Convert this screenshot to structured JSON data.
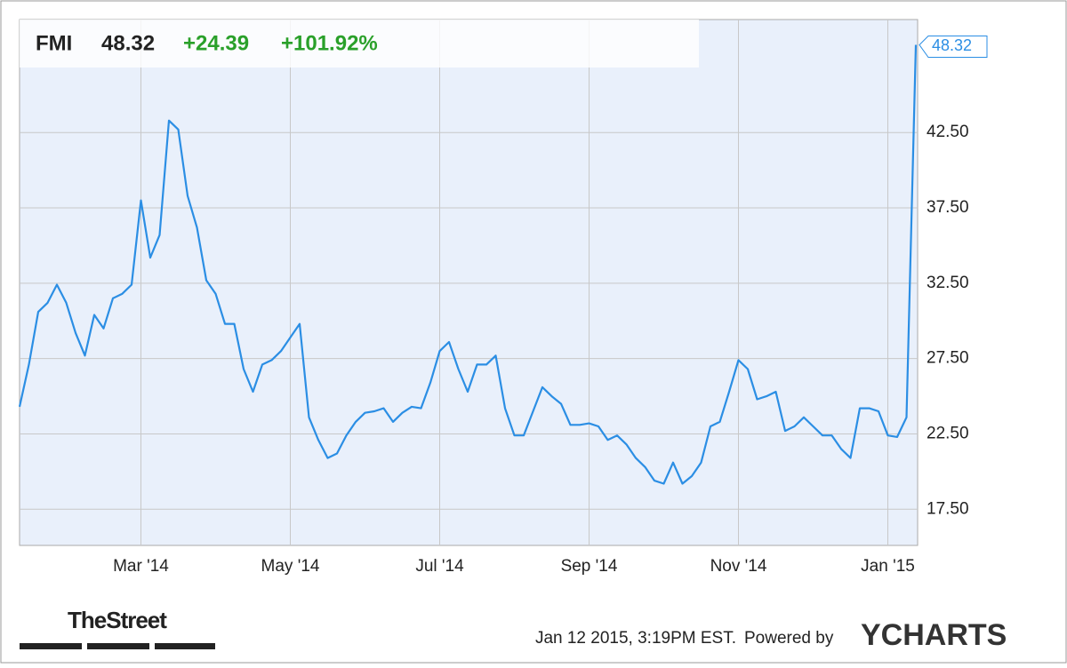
{
  "chart_data": {
    "type": "line",
    "ticker": "FMI",
    "price": "48.32",
    "change": "+24.39",
    "change_pct": "+101.92%",
    "last_label": "48.32",
    "categories": [
      null,
      null,
      null,
      null,
      null,
      null,
      null,
      null,
      null,
      null,
      null,
      null,
      null,
      "Mar '14",
      null,
      null,
      null,
      null,
      null,
      null,
      null,
      null,
      null,
      null,
      null,
      null,
      null,
      null,
      null,
      "May '14",
      null,
      null,
      null,
      null,
      null,
      null,
      null,
      null,
      null,
      null,
      null,
      null,
      null,
      null,
      null,
      "Jul '14",
      null,
      null,
      null,
      null,
      null,
      null,
      null,
      null,
      null,
      null,
      null,
      null,
      null,
      null,
      null,
      "Sep '14",
      null,
      null,
      null,
      null,
      null,
      null,
      null,
      null,
      null,
      null,
      null,
      null,
      null,
      null,
      null,
      "Nov '14",
      null,
      null,
      null,
      null,
      null,
      null,
      null,
      null,
      null,
      null,
      null,
      null,
      null,
      null,
      null,
      "Jan '15",
      null,
      null,
      null
    ],
    "values": [
      24.3,
      27.1,
      30.6,
      31.2,
      32.4,
      31.2,
      29.2,
      27.7,
      30.4,
      29.5,
      31.5,
      31.8,
      32.4,
      38.0,
      34.2,
      35.7,
      43.3,
      42.7,
      38.3,
      36.2,
      32.7,
      31.8,
      29.8,
      29.8,
      26.8,
      25.3,
      27.1,
      27.4,
      28.0,
      28.9,
      29.8,
      23.6,
      22.1,
      20.9,
      21.2,
      22.4,
      23.3,
      23.9,
      24.0,
      24.2,
      23.3,
      23.9,
      24.3,
      24.2,
      25.9,
      28.0,
      28.6,
      26.8,
      25.3,
      27.1,
      27.1,
      27.7,
      24.2,
      22.4,
      22.4,
      24.0,
      25.6,
      25.0,
      24.5,
      23.1,
      23.1,
      23.2,
      23.0,
      22.1,
      22.4,
      21.8,
      20.9,
      20.3,
      19.4,
      19.2,
      20.6,
      19.2,
      19.7,
      20.6,
      23.0,
      23.3,
      25.3,
      27.4,
      26.8,
      24.8,
      25.0,
      25.3,
      22.7,
      23.0,
      23.6,
      23.0,
      22.4,
      22.4,
      21.5,
      20.9,
      24.2,
      24.2,
      24.0,
      22.4,
      22.3,
      23.6,
      48.32
    ],
    "color": "#2b8ee4",
    "ylim": [
      15.1,
      50
    ],
    "yticks": [
      {
        "value": 17.5,
        "label": "17.50"
      },
      {
        "value": 22.5,
        "label": "22.50"
      },
      {
        "value": 27.5,
        "label": "27.50"
      },
      {
        "value": 32.5,
        "label": "32.50"
      },
      {
        "value": 37.5,
        "label": "37.50"
      },
      {
        "value": 42.5,
        "label": "42.50"
      }
    ],
    "grid": true,
    "footer": {
      "brand": "TheStreet",
      "timestamp": "Jan 12 2015, 3:19PM EST.",
      "powered": "Powered by",
      "provider": "YCHARTS"
    }
  }
}
